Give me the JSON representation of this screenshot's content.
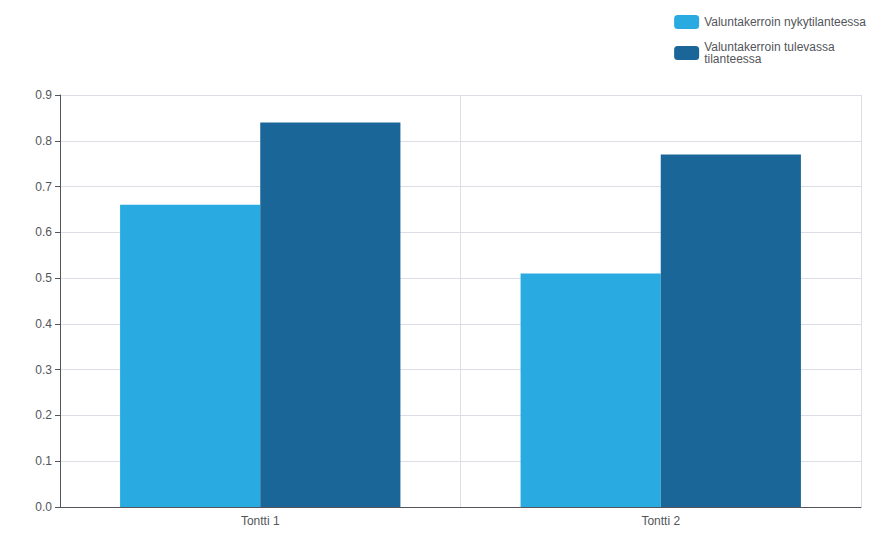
{
  "chart_data": {
    "type": "bar",
    "categories": [
      "Tontti 1",
      "Tontti 2"
    ],
    "series": [
      {
        "name": "Valuntakerroin nykytilanteessa",
        "color": "#29ABE2",
        "values": [
          0.66,
          0.51
        ]
      },
      {
        "name": "Valuntakerroin tulevassa\ntilanteessa",
        "color": "#1A6699",
        "values": [
          0.84,
          0.77
        ]
      }
    ],
    "ylim": [
      0,
      0.9
    ],
    "yticks": [
      {
        "value": 0,
        "label": "0.0"
      },
      0.1,
      0.2,
      0.3,
      0.4,
      0.5,
      0.6,
      0.7,
      0.8,
      0.9
    ],
    "grid": true,
    "legend": "upper right"
  }
}
